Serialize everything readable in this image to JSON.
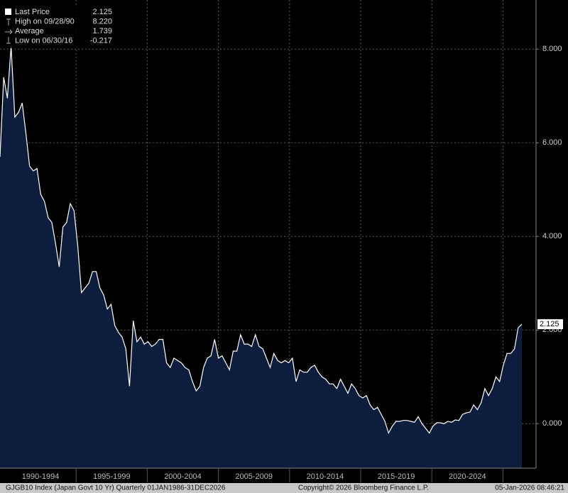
{
  "chart_data": {
    "type": "area",
    "series": [
      {
        "name": "Last Price",
        "color": "#ffffff",
        "fill": "#0c1d3d",
        "values": [
          5.7,
          7.4,
          6.95,
          8.06,
          6.55,
          6.65,
          6.85,
          6.2,
          5.5,
          5.4,
          5.45,
          4.9,
          4.75,
          4.4,
          4.3,
          3.85,
          3.35,
          4.2,
          4.3,
          4.7,
          4.55,
          3.8,
          2.8,
          2.9,
          3.0,
          3.25,
          3.25,
          2.9,
          2.75,
          2.45,
          2.55,
          2.1,
          1.95,
          1.85,
          1.6,
          0.8,
          2.2,
          1.75,
          1.85,
          1.7,
          1.75,
          1.65,
          1.7,
          1.8,
          1.8,
          1.3,
          1.2,
          1.4,
          1.35,
          1.3,
          1.2,
          1.15,
          0.9,
          0.7,
          0.8,
          1.2,
          1.4,
          1.45,
          1.8,
          1.4,
          1.45,
          1.3,
          1.15,
          1.55,
          1.55,
          1.9,
          1.7,
          1.7,
          1.65,
          1.9,
          1.65,
          1.6,
          1.4,
          1.2,
          1.5,
          1.35,
          1.3,
          1.35,
          1.3,
          1.4,
          0.9,
          1.15,
          1.1,
          1.1,
          1.2,
          1.25,
          1.1,
          1.0,
          0.95,
          0.85,
          0.85,
          0.75,
          0.95,
          0.8,
          0.65,
          0.85,
          0.75,
          0.6,
          0.55,
          0.6,
          0.4,
          0.3,
          0.35,
          0.2,
          0.05,
          -0.2,
          -0.05,
          0.05,
          0.05,
          0.07,
          0.07,
          0.05,
          0.03,
          0.15,
          0.0,
          -0.1,
          -0.2,
          -0.05,
          0.02,
          0.02,
          0.0,
          0.05,
          0.03,
          0.08,
          0.07,
          0.2,
          0.23,
          0.25,
          0.4,
          0.3,
          0.45,
          0.75,
          0.6,
          0.75,
          1.0,
          0.9,
          1.25,
          1.5,
          1.5,
          1.6,
          2.05,
          2.125
        ]
      }
    ],
    "period_labels": [
      "1990-1994",
      "1995-1999",
      "2000-2004",
      "2005-2009",
      "2010-2014",
      "2015-2019",
      "2020-2024"
    ],
    "ylim": [
      -0.95,
      9.05
    ],
    "yticks": [
      {
        "value": 0,
        "label": "0.000"
      },
      {
        "value": 2,
        "label": "2.000"
      },
      {
        "value": 4,
        "label": "4.000"
      },
      {
        "value": 6,
        "label": "6.000"
      },
      {
        "value": 8,
        "label": "8.000"
      }
    ],
    "grid": true,
    "legend_stats": [
      {
        "name": "Last Price",
        "value": 2.125
      },
      {
        "name": "High on 09/28/90",
        "value": 8.22,
        "value_label": "8.220"
      },
      {
        "name": "Average",
        "value": 1.739
      },
      {
        "name": "Low on 06/30/16",
        "value": -0.217
      }
    ],
    "footer": {
      "left": "GJGB10 Index (Japan Govt 10 Yr) Quarterly 01JAN1986-31DEC2026",
      "center": "Copyright© 2026 Bloomberg Finance L.P.",
      "right": "05-Jan-2026 08:46:21"
    }
  }
}
